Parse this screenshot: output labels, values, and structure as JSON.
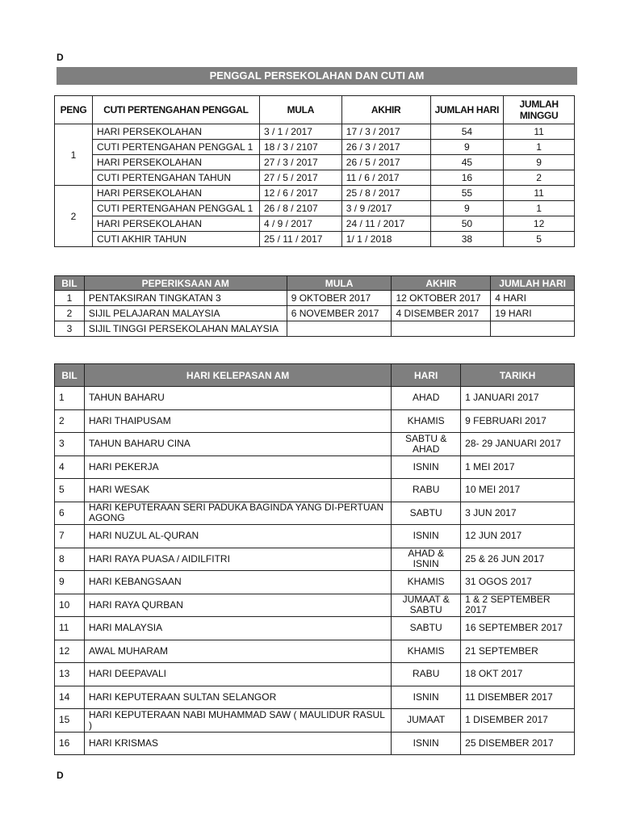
{
  "marker_top": "D",
  "marker_bottom": "D",
  "title": "PENGGAL PERSEKOLAHAN DAN CUTI AM",
  "penggal_table": {
    "headers": [
      "PENG",
      "CUTI PERTENGAHAN PENGGAL",
      "MULA",
      "AKHIR",
      "JUMLAH HARI",
      "JUMLAH MINGGU"
    ],
    "groups": [
      {
        "peng": "1",
        "rows": [
          [
            "HARI PERSEKOLAHAN",
            "3 / 1 / 2017",
            "17 / 3 / 2017",
            "54",
            "11"
          ],
          [
            "CUTI PERTENGAHAN PENGGAL 1",
            "18 / 3 / 2107",
            "26 / 3 / 2017",
            "9",
            "1"
          ],
          [
            "HARI PERSEKOLAHAN",
            "27 / 3 / 2017",
            "26 / 5 / 2017",
            "45",
            "9"
          ],
          [
            "CUTI PERTENGAHAN TAHUN",
            "27 / 5 / 2017",
            "11 / 6 / 2017",
            "16",
            "2"
          ]
        ]
      },
      {
        "peng": "2",
        "rows": [
          [
            "HARI PERSEKOLAHAN",
            "12 / 6 / 2017",
            "25 / 8 / 2017",
            "55",
            "11"
          ],
          [
            "CUTI PERTENGAHAN PENGGAL 1",
            "26 / 8 / 2107",
            "3 / 9 /2017",
            "9",
            "1"
          ],
          [
            "HARI PERSEKOLAHAN",
            "4 / 9 / 2017",
            "24 / 11 / 2017",
            "50",
            "12"
          ],
          [
            "CUTI AKHIR TAHUN",
            "25 / 11 / 2017",
            "1/ 1 / 2018",
            "38",
            "5"
          ]
        ]
      }
    ]
  },
  "exam_table": {
    "headers": [
      "BIL",
      "PEPERIKSAAN AM",
      "MULA",
      "AKHIR",
      "JUMLAH HARI"
    ],
    "rows": [
      [
        "1",
        "PENTAKSIRAN TINGKATAN 3",
        "9 OKTOBER 2017",
        "12 OKTOBER 2017",
        "4 HARI"
      ],
      [
        "2",
        "SIJIL PELAJARAN MALAYSIA",
        "6 NOVEMBER 2017",
        "4 DISEMBER 2017",
        "19 HARI"
      ],
      [
        "3",
        "SIJIL TINGGI PERSEKOLAHAN MALAYSIA",
        "",
        "",
        ""
      ]
    ]
  },
  "holiday_table": {
    "headers": [
      "BIL",
      "HARI KELEPASAN AM",
      "HARI",
      "TARIKH"
    ],
    "rows": [
      [
        "1",
        "TAHUN BAHARU",
        "AHAD",
        "1 JANUARI 2017"
      ],
      [
        "2",
        "HARI THAIPUSAM",
        "KHAMIS",
        "9 FEBRUARI 2017"
      ],
      [
        "3",
        "TAHUN BAHARU CINA",
        "SABTU & AHAD",
        "28- 29 JANUARI 2017"
      ],
      [
        "4",
        "HARI PEKERJA",
        "ISNIN",
        "1 MEI 2017"
      ],
      [
        "5",
        "HARI WESAK",
        "RABU",
        "10 MEI 2017"
      ],
      [
        "6",
        "HARI KEPUTERAAN SERI PADUKA BAGINDA YANG DI-PERTUAN AGONG",
        "SABTU",
        "3 JUN 2017"
      ],
      [
        "7",
        "HARI NUZUL AL-QURAN",
        "ISNIN",
        "12 JUN 2017"
      ],
      [
        "8",
        "HARI RAYA PUASA / AIDILFITRI",
        "AHAD & ISNIN",
        "25 & 26 JUN 2017"
      ],
      [
        "9",
        "HARI KEBANGSAAN",
        "KHAMIS",
        "31 OGOS 2017"
      ],
      [
        "10",
        "HARI RAYA QURBAN",
        "JUMAAT & SABTU",
        "1 & 2 SEPTEMBER 2017"
      ],
      [
        "11",
        "HARI MALAYSIA",
        "SABTU",
        "16 SEPTEMBER 2017"
      ],
      [
        "12",
        "AWAL MUHARAM",
        "KHAMIS",
        "21 SEPTEMBER"
      ],
      [
        "13",
        "HARI DEEPAVALI",
        "RABU",
        "18 OKT 2017"
      ],
      [
        "14",
        "HARI KEPUTERAAN SULTAN SELANGOR",
        "ISNIN",
        "11 DISEMBER 2017"
      ],
      [
        "15",
        "HARI KEPUTERAAN NABI MUHAMMAD SAW ( MAULIDUR RASUL )",
        "JUMAAT",
        "1 DISEMBER 2017"
      ],
      [
        "16",
        "HARI KRISMAS",
        "ISNIN",
        "25 DISEMBER 2017"
      ]
    ]
  }
}
